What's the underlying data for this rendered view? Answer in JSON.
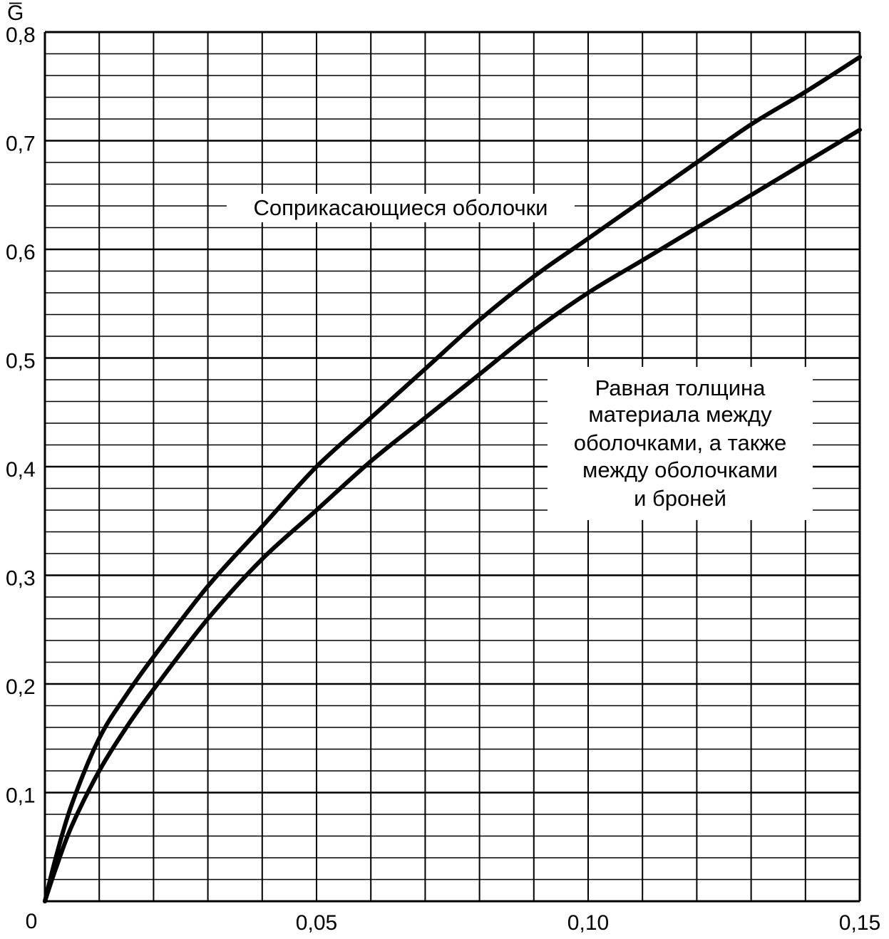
{
  "chart_data": {
    "type": "line",
    "title": "",
    "ylabel": "G̅",
    "xlabel": "",
    "xlim": [
      0,
      0.15
    ],
    "ylim": [
      0,
      0.8
    ],
    "grid": true,
    "origin_label": "0",
    "x_ticks": [
      {
        "value": 0.05,
        "label": "0,05"
      },
      {
        "value": 0.1,
        "label": "0,10"
      },
      {
        "value": 0.15,
        "label": "0,15"
      }
    ],
    "y_ticks": [
      {
        "value": 0.1,
        "label": "0,1"
      },
      {
        "value": 0.2,
        "label": "0,2"
      },
      {
        "value": 0.3,
        "label": "0,3"
      },
      {
        "value": 0.4,
        "label": "0,4"
      },
      {
        "value": 0.5,
        "label": "0,5"
      },
      {
        "value": 0.6,
        "label": "0,6"
      },
      {
        "value": 0.7,
        "label": "0,7"
      },
      {
        "value": 0.8,
        "label": "0,8"
      }
    ],
    "series": [
      {
        "name": "Соприкасающиеся оболочки",
        "x": [
          0,
          0.002,
          0.005,
          0.01,
          0.015,
          0.02,
          0.03,
          0.04,
          0.05,
          0.06,
          0.07,
          0.08,
          0.09,
          0.1,
          0.11,
          0.12,
          0.13,
          0.14,
          0.15
        ],
        "y": [
          0,
          0.04,
          0.09,
          0.15,
          0.19,
          0.225,
          0.29,
          0.345,
          0.4,
          0.445,
          0.49,
          0.535,
          0.575,
          0.61,
          0.645,
          0.68,
          0.715,
          0.745,
          0.777
        ]
      },
      {
        "name": "Равная толщина материала между оболочками, а также между оболочками и броней",
        "x": [
          0,
          0.002,
          0.005,
          0.01,
          0.015,
          0.02,
          0.03,
          0.04,
          0.05,
          0.06,
          0.07,
          0.08,
          0.09,
          0.1,
          0.11,
          0.12,
          0.13,
          0.14,
          0.15
        ],
        "y": [
          0,
          0.03,
          0.07,
          0.12,
          0.16,
          0.195,
          0.26,
          0.315,
          0.36,
          0.405,
          0.445,
          0.485,
          0.525,
          0.56,
          0.59,
          0.62,
          0.65,
          0.68,
          0.71
        ]
      }
    ],
    "annotations": [
      {
        "text": "Соприкасающиеся оболочки",
        "series": 0
      },
      {
        "text_lines": [
          "Равная толщина",
          "материала между",
          "оболочками, а также",
          "между оболочками",
          "и броней"
        ],
        "series": 1
      }
    ]
  }
}
